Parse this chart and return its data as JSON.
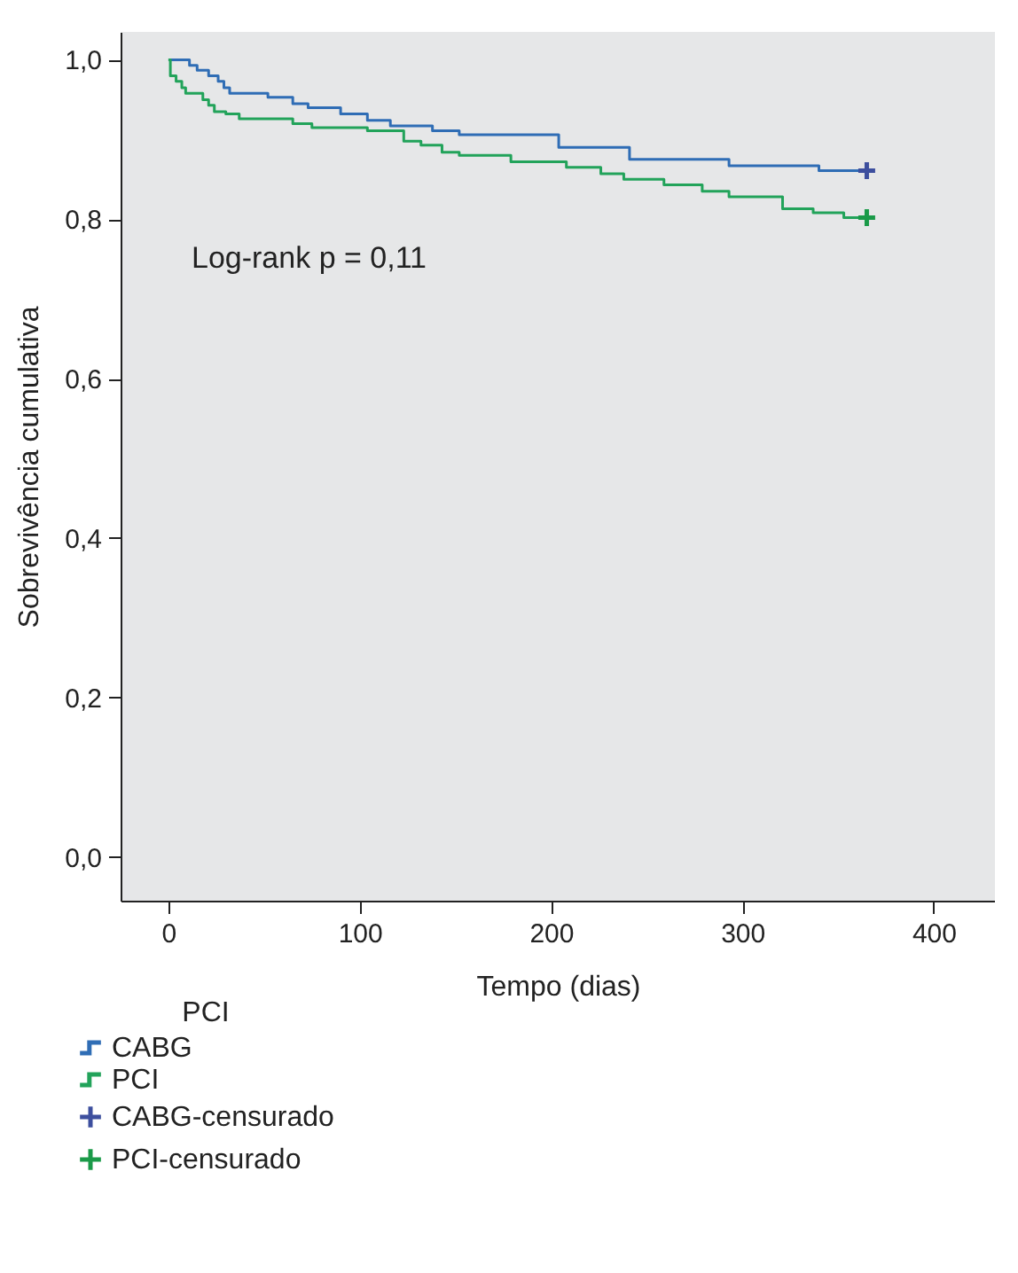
{
  "chart_data": {
    "type": "step",
    "xlabel": "Tempo (dias)",
    "ylabel": "Sobrevivência cumulativa",
    "legend_title": "PCI",
    "legend": "bottom",
    "xlim": [
      -25,
      432
    ],
    "xticks": [
      0,
      100,
      200,
      300,
      400
    ],
    "ylim": [
      -0.055,
      1.035
    ],
    "yticks": [
      {
        "value": 0,
        "label": "0,0"
      },
      {
        "value": 0.2,
        "label": "0,2"
      },
      {
        "value": 0.4,
        "label": "0,4"
      },
      {
        "value": 0.6,
        "label": "0,6"
      },
      {
        "value": 0.8,
        "label": "0,8"
      },
      {
        "value": 1.0,
        "label": "1,0"
      }
    ],
    "grid": false,
    "annotations": [
      "Log-rank p = 0,11"
    ],
    "series": [
      {
        "name": "CABG",
        "color": "#2f6db5",
        "x": [
          0,
          11,
          15,
          21,
          26,
          29,
          32,
          52,
          65,
          73,
          90,
          104,
          116,
          138,
          152,
          204,
          215,
          241,
          293,
          340,
          365
        ],
        "values": [
          1.0,
          0.993,
          0.987,
          0.98,
          0.973,
          0.965,
          0.958,
          0.953,
          0.945,
          0.94,
          0.932,
          0.924,
          0.917,
          0.911,
          0.906,
          0.89,
          0.89,
          0.875,
          0.867,
          0.861,
          0.861
        ]
      },
      {
        "name": "PCI",
        "color": "#22a35a",
        "x": [
          0,
          1,
          4,
          7,
          9,
          18,
          21,
          24,
          30,
          37,
          65,
          75,
          104,
          123,
          132,
          143,
          152,
          179,
          208,
          226,
          238,
          259,
          279,
          293,
          321,
          337,
          353,
          365
        ],
        "values": [
          1.0,
          0.98,
          0.973,
          0.965,
          0.958,
          0.95,
          0.943,
          0.935,
          0.932,
          0.926,
          0.92,
          0.915,
          0.911,
          0.898,
          0.893,
          0.884,
          0.88,
          0.872,
          0.865,
          0.857,
          0.85,
          0.843,
          0.835,
          0.828,
          0.813,
          0.808,
          0.802,
          0.802
        ]
      },
      {
        "name": "CABG-censurado",
        "type": "scatter",
        "marker": "cross",
        "color": "#3d4f9e",
        "x": [
          365
        ],
        "values": [
          0.861
        ]
      },
      {
        "name": "PCI-censurado",
        "type": "scatter",
        "marker": "cross",
        "color": "#1a9a48",
        "x": [
          365
        ],
        "values": [
          0.802
        ]
      }
    ]
  }
}
